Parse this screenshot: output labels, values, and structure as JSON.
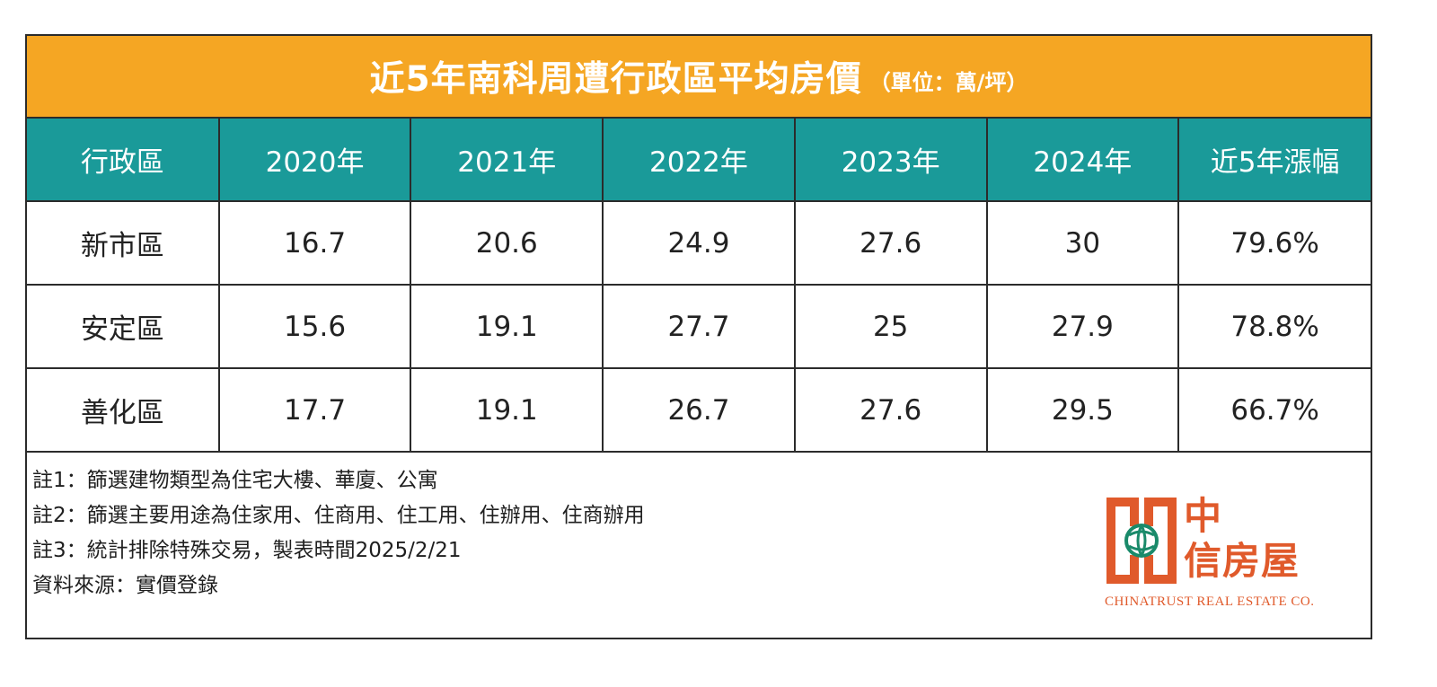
{
  "header": {
    "title": "近5年南科周遭行政區平均房價",
    "unit": "（單位：萬/坪）"
  },
  "table": {
    "columns": [
      "行政區",
      "2020年",
      "2021年",
      "2022年",
      "2023年",
      "2024年",
      "近5年漲幅"
    ],
    "rows": [
      [
        "新市區",
        "16.7",
        "20.6",
        "24.9",
        "27.6",
        "30",
        "79.6%"
      ],
      [
        "安定區",
        "15.6",
        "19.1",
        "27.7",
        "25",
        "27.9",
        "78.8%"
      ],
      [
        "善化區",
        "17.7",
        "19.1",
        "26.7",
        "27.6",
        "29.5",
        "66.7%"
      ]
    ]
  },
  "notes": [
    "註1：篩選建物類型為住宅大樓、華廈、公寓",
    "註2：篩選主要用途為住家用、住商用、住工用、住辦用、住商辦用",
    "註3：統計排除特殊交易，製表時間2025/2/21",
    "資料來源：實價登錄"
  ],
  "logo": {
    "name_line1": "中",
    "name_line2": "信房屋",
    "english": "CHINATRUST REAL ESTATE CO."
  },
  "colors": {
    "title_bar": "#f5a623",
    "header_row": "#1a9a99",
    "logo": "#e05a2b"
  },
  "chart_data": {
    "type": "table",
    "title": "近5年南科周遭行政區平均房價",
    "unit": "萬/坪",
    "categories": [
      "2020年",
      "2021年",
      "2022年",
      "2023年",
      "2024年"
    ],
    "series": [
      {
        "name": "新市區",
        "values": [
          16.7,
          20.6,
          24.9,
          27.6,
          30
        ],
        "growth": "79.6%"
      },
      {
        "name": "安定區",
        "values": [
          15.6,
          19.1,
          27.7,
          25,
          27.9
        ],
        "growth": "78.8%"
      },
      {
        "name": "善化區",
        "values": [
          17.7,
          19.1,
          26.7,
          27.6,
          29.5
        ],
        "growth": "66.7%"
      }
    ]
  }
}
